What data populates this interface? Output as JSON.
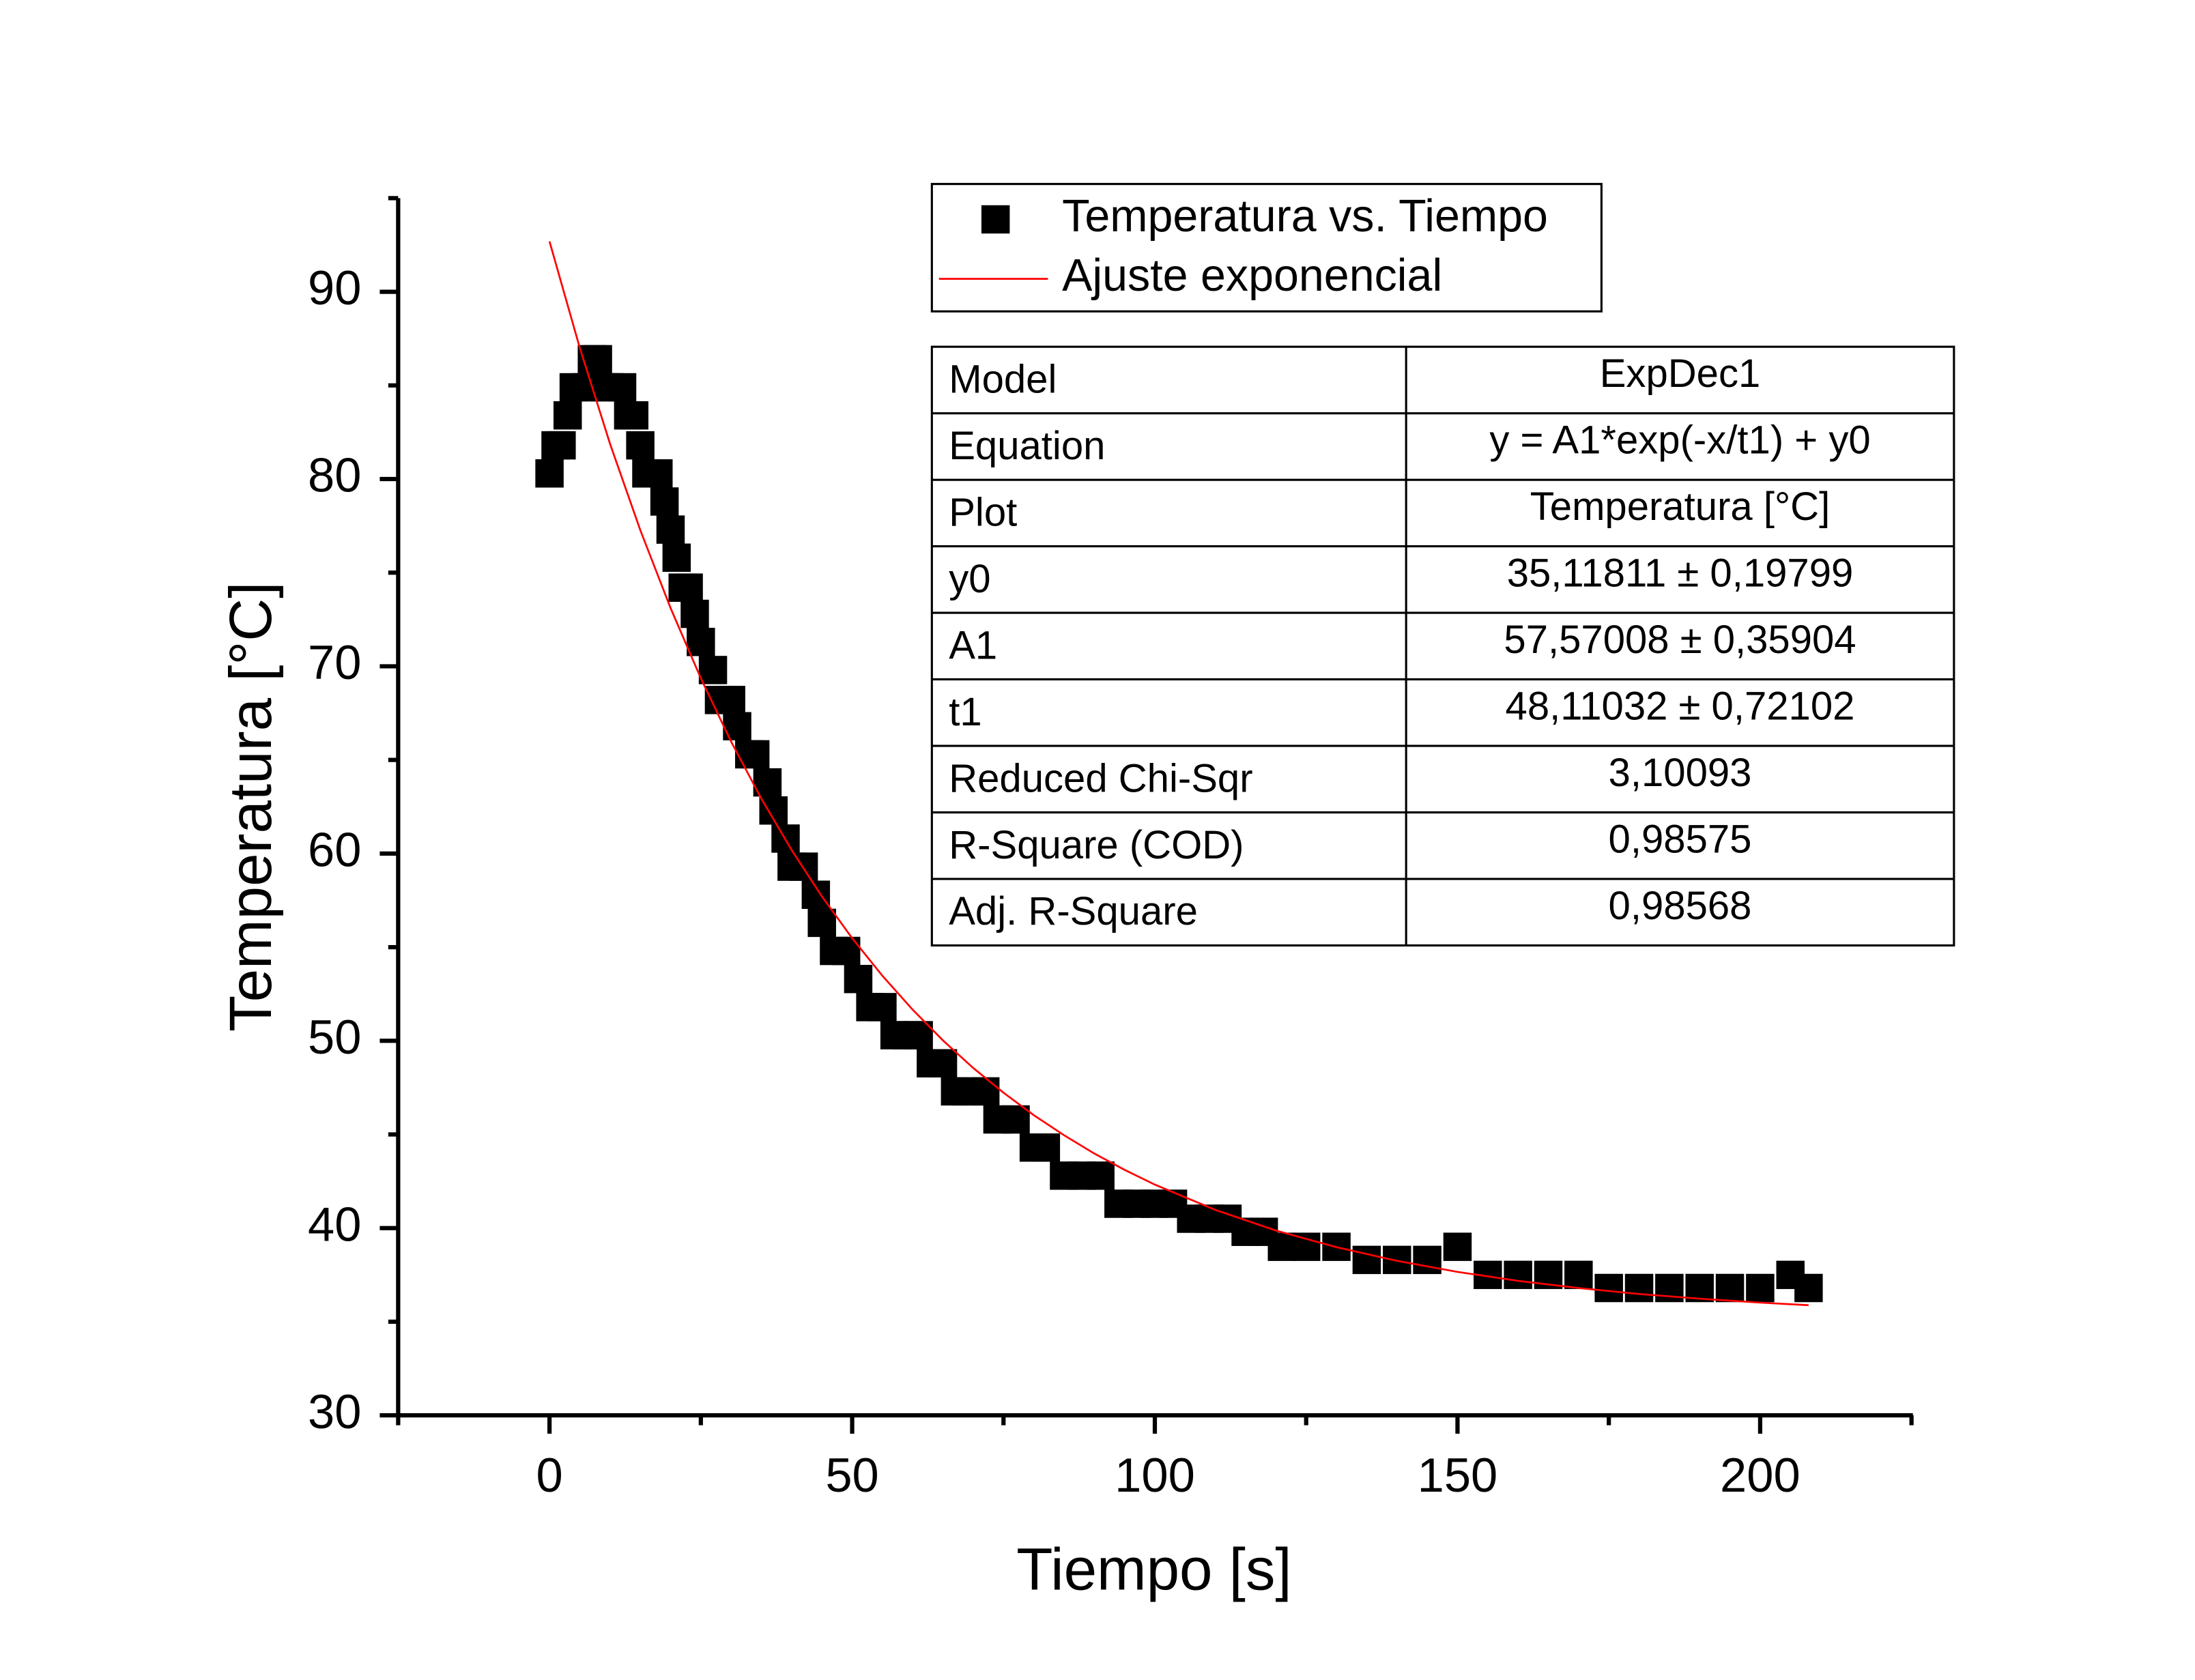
{
  "chart_data": {
    "type": "scatter",
    "xlabel": "Tiempo [s]",
    "ylabel": "Temperatura [°C]",
    "xlim": [
      -25,
      225
    ],
    "ylim": [
      30,
      95
    ],
    "xticks": [
      0,
      50,
      100,
      150,
      200
    ],
    "yticks": [
      30,
      40,
      50,
      60,
      70,
      80,
      90
    ],
    "xminorticks": [
      -25,
      25,
      75,
      125,
      175,
      225
    ],
    "yminorticks": [
      35,
      45,
      55,
      65,
      75,
      85,
      95
    ],
    "legend": "top-right",
    "series": [
      {
        "name": "Temperatura vs. Tiempo",
        "color": "#000000",
        "marker": "square",
        "x": [
          0,
          1,
          2,
          3,
          4,
          6,
          7,
          8,
          9,
          10,
          12,
          13,
          14,
          15,
          16,
          18,
          19,
          20,
          21,
          22,
          23,
          24,
          25,
          27,
          28,
          30,
          31,
          33,
          34,
          36,
          37,
          39,
          40,
          42,
          44,
          45,
          47,
          49,
          51,
          53,
          55,
          57,
          59,
          61,
          63,
          65,
          67,
          69,
          72,
          74,
          77,
          80,
          82,
          85,
          88,
          91,
          94,
          97,
          100,
          103,
          106,
          109,
          112,
          115,
          118,
          121,
          125,
          130,
          135,
          140,
          145,
          150,
          155,
          160,
          165,
          170,
          175,
          180,
          185,
          190,
          195,
          200,
          205,
          208
        ],
        "values": [
          80.3,
          81.8,
          81.8,
          83.4,
          84.9,
          84.9,
          86.4,
          86.4,
          84.9,
          84.9,
          84.9,
          83.4,
          83.4,
          81.8,
          80.3,
          80.3,
          78.8,
          77.3,
          75.8,
          74.2,
          74.2,
          72.8,
          71.3,
          69.8,
          68.2,
          68.2,
          66.8,
          65.3,
          65.3,
          63.8,
          62.3,
          60.8,
          59.3,
          59.3,
          57.8,
          56.3,
          54.8,
          54.8,
          53.3,
          51.8,
          51.8,
          50.3,
          50.3,
          50.3,
          48.8,
          48.8,
          47.3,
          47.3,
          47.3,
          45.8,
          45.8,
          44.3,
          44.3,
          42.8,
          42.8,
          42.8,
          41.3,
          41.3,
          41.3,
          41.3,
          40.5,
          40.5,
          40.5,
          39.8,
          39.8,
          39.0,
          39.0,
          39.0,
          38.3,
          38.3,
          38.3,
          39.0,
          37.5,
          37.5,
          37.5,
          37.5,
          36.8,
          36.8,
          36.8,
          36.8,
          36.8,
          36.8,
          37.5,
          36.8
        ]
      },
      {
        "name": "Ajuste exponencial",
        "color": "#ff0000",
        "marker": "line",
        "x": [
          0,
          5,
          10,
          15,
          20,
          25,
          30,
          35,
          40,
          45,
          50,
          55,
          60,
          65,
          70,
          75,
          80,
          85,
          90,
          95,
          100,
          110,
          120,
          130,
          140,
          150,
          160,
          170,
          180,
          190,
          200,
          208
        ],
        "values": [
          92.69,
          87.01,
          81.88,
          77.27,
          73.11,
          69.36,
          65.98,
          62.93,
          60.19,
          57.71,
          55.48,
          53.47,
          51.66,
          50.02,
          48.55,
          47.23,
          46.03,
          44.96,
          43.98,
          43.11,
          42.32,
          40.97,
          39.87,
          38.98,
          38.25,
          37.66,
          37.18,
          36.8,
          36.48,
          36.23,
          36.02,
          35.88
        ]
      }
    ],
    "table": {
      "rows": [
        [
          "Model",
          "ExpDec1"
        ],
        [
          "Equation",
          "y = A1*exp(-x/t1) + y0"
        ],
        [
          "Plot",
          "Temperatura [°C]"
        ],
        [
          "y0",
          "35,11811 ± 0,19799"
        ],
        [
          "A1",
          "57,57008 ± 0,35904"
        ],
        [
          "t1",
          "48,11032 ± 0,72102"
        ],
        [
          "Reduced Chi-Sqr",
          "3,10093"
        ],
        [
          "R-Square (COD)",
          "0,98575"
        ],
        [
          "Adj. R-Square",
          "0,98568"
        ]
      ]
    }
  }
}
